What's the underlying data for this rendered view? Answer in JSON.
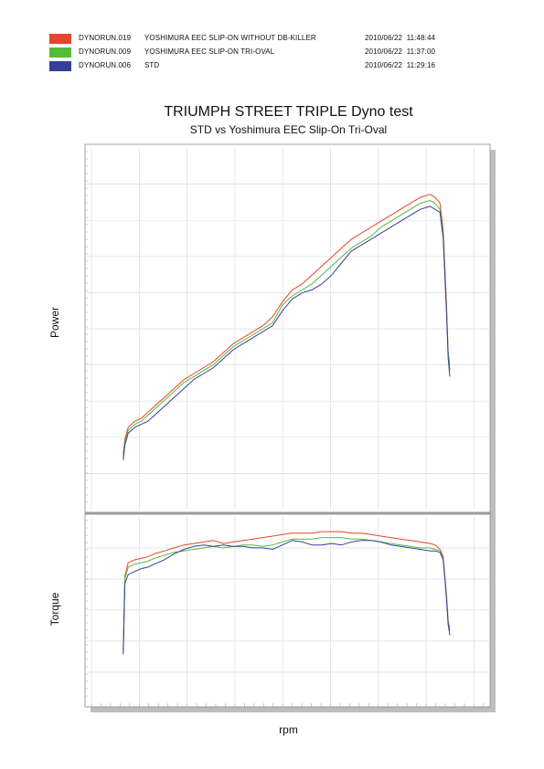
{
  "legend": [
    {
      "run": "DYNORUN.019",
      "desc": "YOSHIMURA EEC SLIP-ON WITHOUT DB-KILLER",
      "date": "2010/06/22",
      "time": "11:48:44",
      "color": "#e8442a"
    },
    {
      "run": "DYNORUN.009",
      "desc": "YOSHIMURA EEC SLIP-ON TRI-OVAL",
      "date": "2010/06/22",
      "time": "11:37:00",
      "color": "#55bb3a"
    },
    {
      "run": "DYNORUN.006",
      "desc": "STD",
      "date": "2010/06/22",
      "time": "11:29:16",
      "color": "#33409a"
    }
  ],
  "title": "TRIUMPH STREET TRIPLE  Dyno test",
  "subtitle": "STD vs Yoshimura EEC Slip-On Tri-Oval",
  "chart_data": {
    "type": "line",
    "title": "TRIUMPH STREET TRIPLE  Dyno test",
    "subtitle": "STD vs Yoshimura EEC Slip-On Tri-Oval",
    "xlabel": "rpm",
    "xlim": [
      0,
      100
    ],
    "grid": true,
    "legend_position": "top-left",
    "x": [
      0.5,
      1,
      2,
      4,
      6,
      8,
      10,
      13,
      16,
      19,
      22,
      25,
      28,
      31,
      34,
      37,
      40,
      43,
      46,
      49,
      52,
      55,
      58,
      61,
      64,
      67,
      70,
      73,
      76,
      79,
      82,
      85,
      88,
      91,
      94,
      95.5,
      97,
      98,
      99,
      99.5,
      100
    ],
    "panels": [
      {
        "name": "power",
        "ylabel": "Power",
        "ylim": [
          0,
          100
        ],
        "series": [
          {
            "name": "DYNORUN.019",
            "color": "#e8442a",
            "values": [
              10,
              15,
              19,
              21,
              22,
              24,
              26,
              29,
              32,
              35,
              37,
              39,
              41,
              44,
              47,
              49,
              51,
              53,
              56,
              61,
              65,
              67,
              70,
              73,
              76,
              79,
              82,
              84,
              86,
              88,
              90,
              92,
              94,
              96,
              97,
              96,
              94,
              85,
              60,
              44,
              38
            ]
          },
          {
            "name": "DYNORUN.009",
            "color": "#55bb3a",
            "values": [
              9,
              14,
              18,
              20,
              21,
              23,
              25,
              28,
              31,
              34,
              36,
              38,
              40,
              43,
              46,
              48,
              50,
              52,
              54,
              60,
              63,
              65,
              67,
              70,
              73,
              76,
              79,
              81,
              83,
              86,
              88,
              90,
              92,
              94,
              95,
              94,
              92,
              83,
              58,
              44,
              40
            ]
          },
          {
            "name": "DYNORUN.006",
            "color": "#33409a",
            "values": [
              8,
              13,
              17,
              19,
              20,
              21,
              23,
              26,
              29,
              32,
              35,
              37,
              39,
              42,
              45,
              47,
              49,
              51,
              53,
              58,
              62,
              64,
              65,
              67,
              70,
              74,
              78,
              80,
              82,
              84,
              86,
              88,
              90,
              92,
              93,
              92,
              91,
              82,
              57,
              42,
              36
            ]
          }
        ]
      },
      {
        "name": "torque",
        "ylabel": "Torque",
        "ylim": [
          0,
          100
        ],
        "series": [
          {
            "name": "DYNORUN.019",
            "color": "#e8442a",
            "values": [
              15,
              65,
              74,
              76,
              77,
              78,
              80,
              82,
              84,
              86,
              87,
              88,
              89,
              87,
              88,
              89,
              90,
              91,
              92,
              93,
              94,
              94,
              94,
              95,
              95,
              95,
              94,
              94,
              93,
              92,
              91,
              90,
              89,
              88,
              87,
              86,
              83,
              78,
              52,
              35,
              28
            ]
          },
          {
            "name": "DYNORUN.009",
            "color": "#55bb3a",
            "values": [
              13,
              63,
              71,
              73,
              74,
              75,
              77,
              79,
              81,
              82,
              83,
              84,
              85,
              84,
              85,
              86,
              86,
              85,
              86,
              88,
              90,
              90,
              90,
              91,
              91,
              91,
              90,
              90,
              89,
              88,
              87,
              86,
              85,
              84,
              84,
              83,
              82,
              77,
              50,
              34,
              30
            ]
          },
          {
            "name": "DYNORUN.006",
            "color": "#33409a",
            "values": [
              12,
              60,
              66,
              68,
              70,
              71,
              73,
              76,
              80,
              83,
              85,
              86,
              85,
              86,
              85,
              85,
              84,
              84,
              83,
              86,
              89,
              88,
              86,
              86,
              87,
              86,
              88,
              89,
              89,
              88,
              86,
              85,
              84,
              83,
              82,
              82,
              81,
              76,
              49,
              32,
              25
            ]
          }
        ]
      }
    ]
  }
}
